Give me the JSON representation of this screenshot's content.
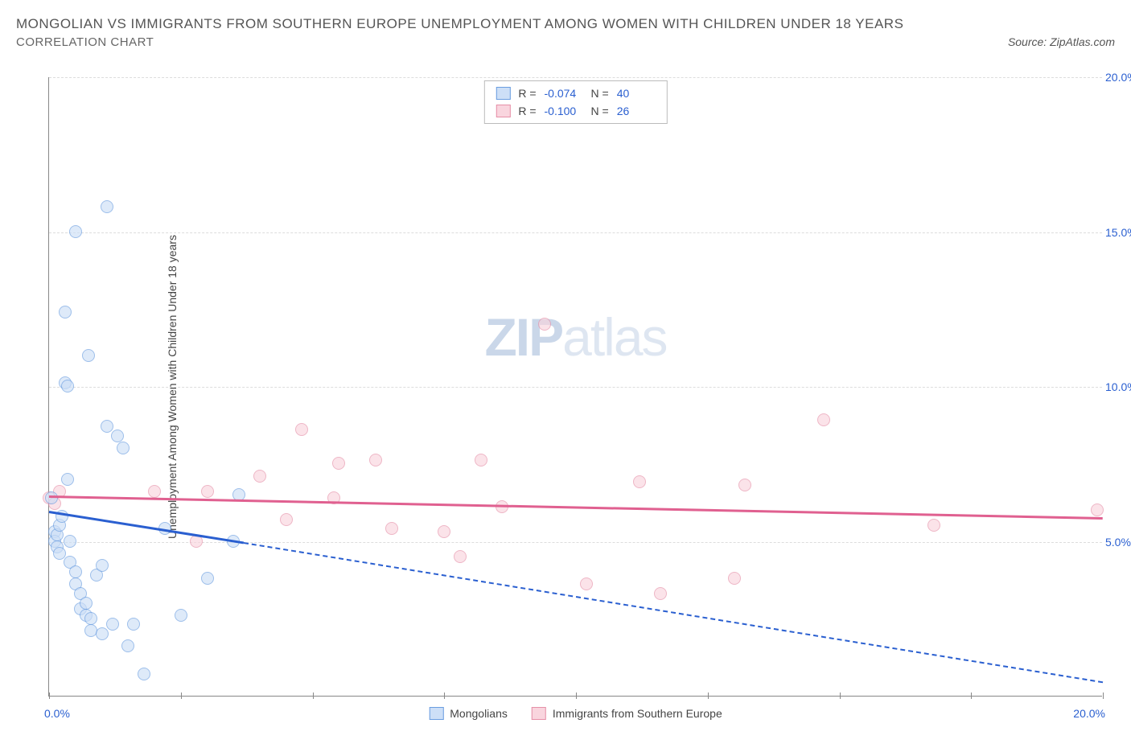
{
  "header": {
    "title": "MONGOLIAN VS IMMIGRANTS FROM SOUTHERN EUROPE UNEMPLOYMENT AMONG WOMEN WITH CHILDREN UNDER 18 YEARS",
    "subtitle": "CORRELATION CHART",
    "source": "Source: ZipAtlas.com"
  },
  "chart": {
    "type": "scatter",
    "background_color": "#ffffff",
    "grid_color": "#dddddd",
    "axis_color": "#888888",
    "label_color": "#444444",
    "tick_color": "#2a5fd0",
    "xlim": [
      0,
      20
    ],
    "ylim": [
      0,
      20
    ],
    "x_min_label": "0.0%",
    "x_max_label": "20.0%",
    "ylabel": "Unemployment Among Women with Children Under 18 years",
    "yticks": [
      {
        "v": 5.0,
        "label": "5.0%"
      },
      {
        "v": 10.0,
        "label": "10.0%"
      },
      {
        "v": 15.0,
        "label": "15.0%"
      },
      {
        "v": 20.0,
        "label": "20.0%"
      }
    ],
    "x_majors": [
      0,
      2.5,
      5,
      7.5,
      10,
      12.5,
      15,
      17.5,
      20
    ],
    "label_fontsize": 14,
    "marker_radius": 8,
    "marker_opacity": 0.65,
    "line_width": 2.5
  },
  "watermark": {
    "z": "Z",
    "ip": "IP",
    "atlas": "atlas"
  },
  "legend": {
    "series_a_label": "Mongolians",
    "series_b_label": "Immigrants from Southern Europe"
  },
  "stats": {
    "r_label": "R =",
    "n_label": "N =",
    "a": {
      "r": "-0.074",
      "n": "40"
    },
    "b": {
      "r": "-0.100",
      "n": "26"
    }
  },
  "series_a": {
    "name": "Mongolians",
    "fill_color": "#cddff7",
    "stroke_color": "#6a9de0",
    "line_color": "#2a5fd0",
    "trend": {
      "x1": 0.0,
      "y1": 6.0,
      "x2": 3.7,
      "y2": 5.0,
      "extend_x2": 20.0,
      "extend_y2": 0.5
    },
    "points": [
      [
        0.05,
        6.4
      ],
      [
        0.1,
        5.3
      ],
      [
        0.1,
        5.0
      ],
      [
        0.15,
        5.2
      ],
      [
        0.15,
        4.8
      ],
      [
        0.2,
        5.5
      ],
      [
        0.2,
        4.6
      ],
      [
        0.25,
        5.8
      ],
      [
        0.3,
        12.4
      ],
      [
        0.3,
        10.1
      ],
      [
        0.35,
        10.0
      ],
      [
        0.35,
        7.0
      ],
      [
        0.4,
        5.0
      ],
      [
        0.4,
        4.3
      ],
      [
        0.5,
        3.6
      ],
      [
        0.5,
        15.0
      ],
      [
        0.5,
        4.0
      ],
      [
        0.6,
        3.3
      ],
      [
        0.6,
        2.8
      ],
      [
        0.7,
        3.0
      ],
      [
        0.7,
        2.6
      ],
      [
        0.75,
        11.0
      ],
      [
        0.8,
        2.5
      ],
      [
        0.8,
        2.1
      ],
      [
        0.9,
        3.9
      ],
      [
        1.0,
        2.0
      ],
      [
        1.0,
        4.2
      ],
      [
        1.1,
        15.8
      ],
      [
        1.1,
        8.7
      ],
      [
        1.2,
        2.3
      ],
      [
        1.3,
        8.4
      ],
      [
        1.4,
        8.0
      ],
      [
        1.5,
        1.6
      ],
      [
        1.6,
        2.3
      ],
      [
        1.8,
        0.7
      ],
      [
        2.2,
        5.4
      ],
      [
        2.5,
        2.6
      ],
      [
        3.0,
        3.8
      ],
      [
        3.5,
        5.0
      ],
      [
        3.6,
        6.5
      ]
    ]
  },
  "series_b": {
    "name": "Immigrants from Southern Europe",
    "fill_color": "#f9d5de",
    "stroke_color": "#e690a8",
    "line_color": "#e06090",
    "trend": {
      "x1": 0.0,
      "y1": 6.5,
      "x2": 20.0,
      "y2": 5.8
    },
    "points": [
      [
        0.0,
        6.4
      ],
      [
        0.1,
        6.2
      ],
      [
        0.2,
        6.6
      ],
      [
        2.0,
        6.6
      ],
      [
        2.8,
        5.0
      ],
      [
        3.0,
        6.6
      ],
      [
        4.0,
        7.1
      ],
      [
        4.5,
        5.7
      ],
      [
        4.8,
        8.6
      ],
      [
        5.4,
        6.4
      ],
      [
        5.5,
        7.5
      ],
      [
        6.2,
        7.6
      ],
      [
        6.5,
        5.4
      ],
      [
        7.5,
        5.3
      ],
      [
        7.8,
        4.5
      ],
      [
        8.2,
        7.6
      ],
      [
        8.6,
        6.1
      ],
      [
        9.4,
        12.0
      ],
      [
        10.2,
        3.6
      ],
      [
        11.2,
        6.9
      ],
      [
        11.6,
        3.3
      ],
      [
        13.0,
        3.8
      ],
      [
        13.2,
        6.8
      ],
      [
        14.7,
        8.9
      ],
      [
        16.8,
        5.5
      ],
      [
        19.9,
        6.0
      ]
    ]
  }
}
